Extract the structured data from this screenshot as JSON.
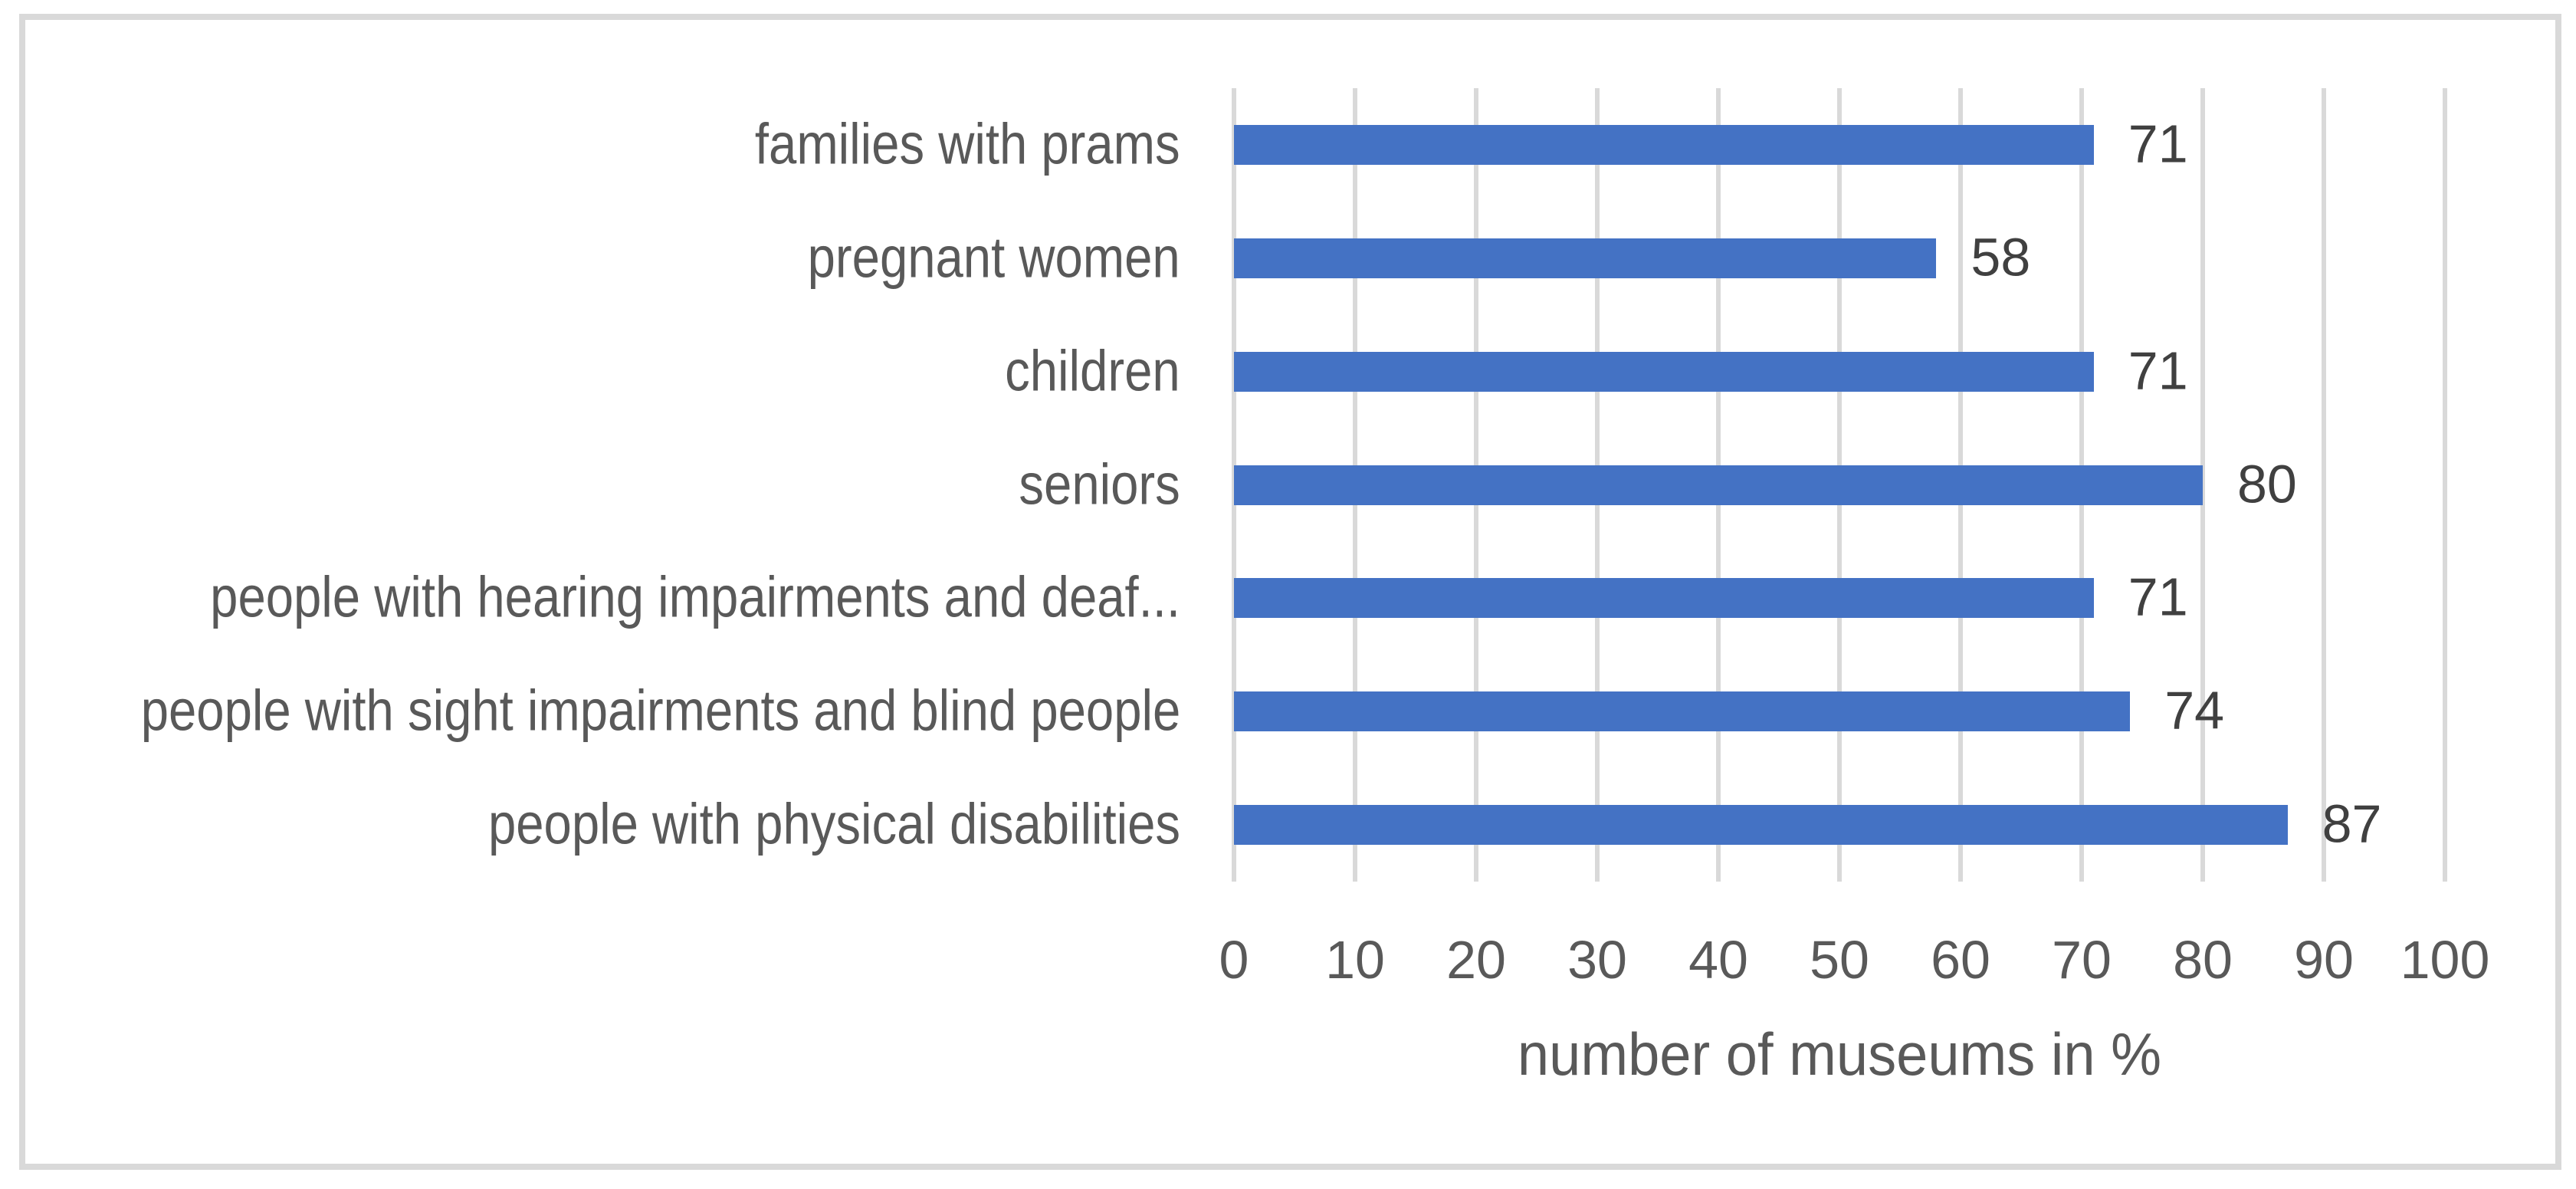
{
  "chart_frame": {
    "border_color": "#d9d9d9"
  },
  "chart_data": {
    "type": "bar",
    "orientation": "horizontal",
    "categories": [
      "families with prams",
      "pregnant women",
      "children",
      "seniors",
      "people with hearing impairments and deaf...",
      "people with sight impairments and blind people",
      "people with physical disabilities"
    ],
    "values": [
      71,
      58,
      71,
      80,
      71,
      74,
      87
    ],
    "data_labels": [
      "71",
      "58",
      "71",
      "80",
      "71",
      "74",
      "87"
    ],
    "title": "",
    "xlabel": "number of museums in %",
    "ylabel": "",
    "xlim": [
      0,
      100
    ],
    "xticks": [
      0,
      10,
      20,
      30,
      40,
      50,
      60,
      70,
      80,
      90,
      100
    ],
    "grid": "vertical",
    "legend": "none",
    "bar_color": "#4472c4",
    "gridline_color": "#d9d9d9",
    "axis_text_color": "#595959",
    "value_label_color": "#404040"
  }
}
